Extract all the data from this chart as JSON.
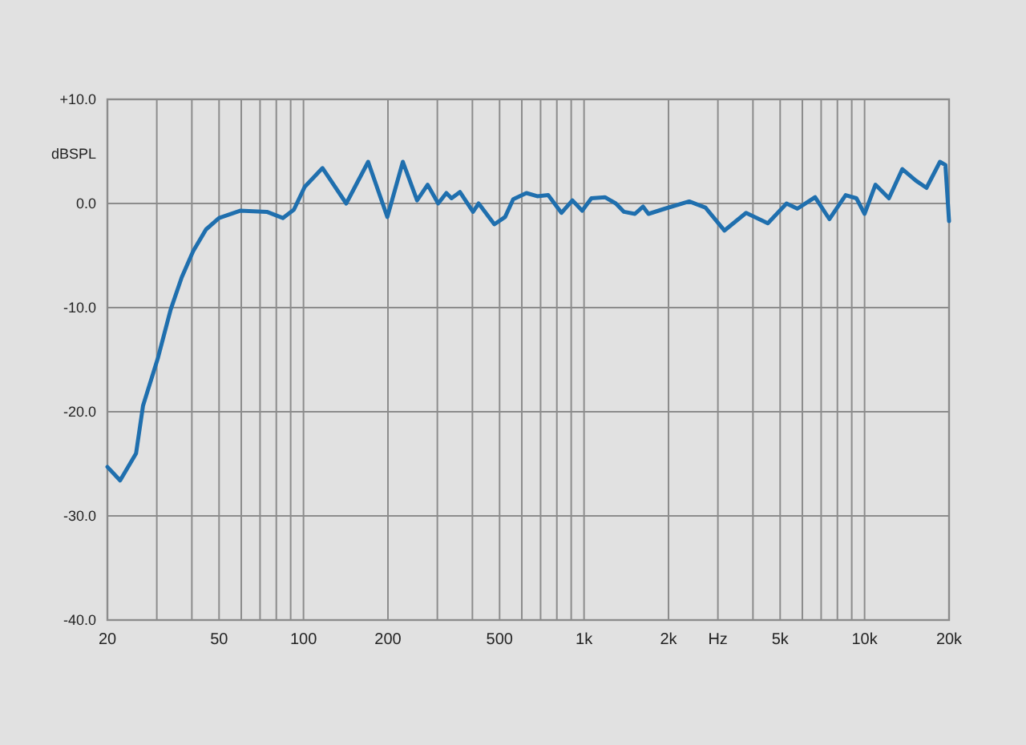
{
  "chart_data": {
    "type": "line",
    "ylabel": "dBSPL",
    "log": "x",
    "grid": true,
    "marker": "none",
    "line_style": "solid",
    "xlim": [
      20,
      20000
    ],
    "ylim": [
      -40,
      10
    ],
    "xticks": [
      20,
      {
        "value": 30,
        "label": null
      },
      {
        "value": 40,
        "label": null
      },
      50,
      {
        "value": 60,
        "label": null
      },
      {
        "value": 70,
        "label": null
      },
      {
        "value": 80,
        "label": null
      },
      {
        "value": 90,
        "label": null
      },
      100,
      200,
      {
        "value": 300,
        "label": null
      },
      {
        "value": 400,
        "label": null
      },
      500,
      {
        "value": 600,
        "label": null
      },
      {
        "value": 700,
        "label": null
      },
      {
        "value": 800,
        "label": null
      },
      {
        "value": 900,
        "label": null
      },
      {
        "value": 1000,
        "label": "1k"
      },
      {
        "value": 2000,
        "label": "2k"
      },
      {
        "value": 3000,
        "label": "Hz"
      },
      {
        "value": 4000,
        "label": null
      },
      {
        "value": 5000,
        "label": "5k"
      },
      {
        "value": 6000,
        "label": null
      },
      {
        "value": 7000,
        "label": null
      },
      {
        "value": 8000,
        "label": null
      },
      {
        "value": 9000,
        "label": null
      },
      {
        "value": 10000,
        "label": "10k"
      },
      {
        "value": 20000,
        "label": "20k"
      }
    ],
    "yticks": [
      {
        "value": -40,
        "label": "-40.0"
      },
      {
        "value": -30,
        "label": "-30.0"
      },
      {
        "value": -20,
        "label": "-20.0"
      },
      {
        "value": -10,
        "label": "-10.0"
      },
      {
        "value": 0,
        "label": "0.0"
      },
      {
        "value": 10,
        "label": "+10.0"
      }
    ],
    "series": [
      {
        "color": "#1f6fae",
        "x": [
          20,
          22.2,
          25.3,
          26.8,
          30.3,
          33.6,
          36.8,
          40.4,
          44.9,
          50,
          59.4,
          74,
          84.4,
          92.4,
          101,
          116.9,
          142,
          170,
          199,
          226,
          254,
          277,
          302,
          323,
          337,
          361,
          402,
          421,
          479,
          523,
          559,
          623,
          681,
          745,
          831,
          909,
          985,
          1062,
          1187,
          1298,
          1388,
          1518,
          1623,
          1697,
          1940,
          2370,
          2708,
          3166,
          3780,
          4520,
          5270,
          5760,
          6660,
          7490,
          8560,
          9350,
          10000,
          10930,
          12210,
          13630,
          15220,
          16620,
          18560,
          19410,
          20000
        ],
        "values": [
          -25.3,
          -26.6,
          -24.0,
          -19.4,
          -14.8,
          -10.2,
          -7.1,
          -4.6,
          -2.5,
          -1.4,
          -0.7,
          -0.8,
          -1.4,
          -0.6,
          1.6,
          3.4,
          0,
          4.0,
          -1.3,
          4.0,
          0.3,
          1.8,
          0,
          1.0,
          0.5,
          1.1,
          -0.8,
          0,
          -2.0,
          -1.3,
          0.4,
          1.0,
          0.7,
          0.8,
          -0.9,
          0.3,
          -0.7,
          0.5,
          0.6,
          0,
          -0.8,
          -1.0,
          -0.3,
          -1.0,
          -0.5,
          0.2,
          -0.4,
          -2.6,
          -0.9,
          -1.9,
          0,
          -0.5,
          0.6,
          -1.5,
          0.8,
          0.5,
          -1.0,
          1.8,
          0.5,
          3.3,
          2.2,
          1.5,
          4.0,
          3.7,
          -1.7
        ]
      }
    ]
  }
}
